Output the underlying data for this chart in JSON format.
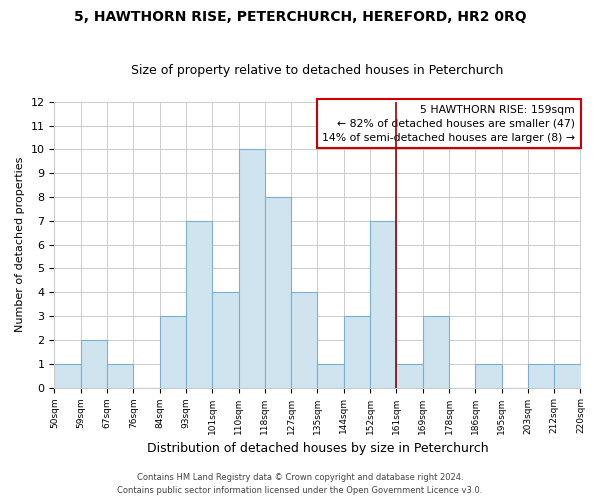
{
  "title": "5, HAWTHORN RISE, PETERCHURCH, HEREFORD, HR2 0RQ",
  "subtitle": "Size of property relative to detached houses in Peterchurch",
  "xlabel": "Distribution of detached houses by size in Peterchurch",
  "ylabel": "Number of detached properties",
  "bin_labels": [
    "50sqm",
    "59sqm",
    "67sqm",
    "76sqm",
    "84sqm",
    "93sqm",
    "101sqm",
    "110sqm",
    "118sqm",
    "127sqm",
    "135sqm",
    "144sqm",
    "152sqm",
    "161sqm",
    "169sqm",
    "178sqm",
    "186sqm",
    "195sqm",
    "203sqm",
    "212sqm",
    "220sqm"
  ],
  "bar_values": [
    1,
    2,
    1,
    0,
    3,
    7,
    4,
    10,
    8,
    4,
    1,
    3,
    7,
    1,
    3,
    0,
    1,
    0,
    1,
    1
  ],
  "bar_color": "#d0e4f0",
  "bar_edge_color": "#7bafd4",
  "ylim": [
    0,
    12
  ],
  "yticks": [
    0,
    1,
    2,
    3,
    4,
    5,
    6,
    7,
    8,
    9,
    10,
    11,
    12
  ],
  "vline_index": 13,
  "vline_color": "#990000",
  "annotation_title": "5 HAWTHORN RISE: 159sqm",
  "annotation_line1": "← 82% of detached houses are smaller (47)",
  "annotation_line2": "14% of semi-detached houses are larger (8) →",
  "annotation_box_color": "#ffffff",
  "annotation_box_edge": "#cc0000",
  "footer1": "Contains HM Land Registry data © Crown copyright and database right 2024.",
  "footer2": "Contains public sector information licensed under the Open Government Licence v3.0.",
  "bg_color": "#ffffff",
  "grid_color": "#cccccc",
  "title_fontsize": 10,
  "subtitle_fontsize": 9,
  "ylabel_fontsize": 8,
  "xlabel_fontsize": 9
}
